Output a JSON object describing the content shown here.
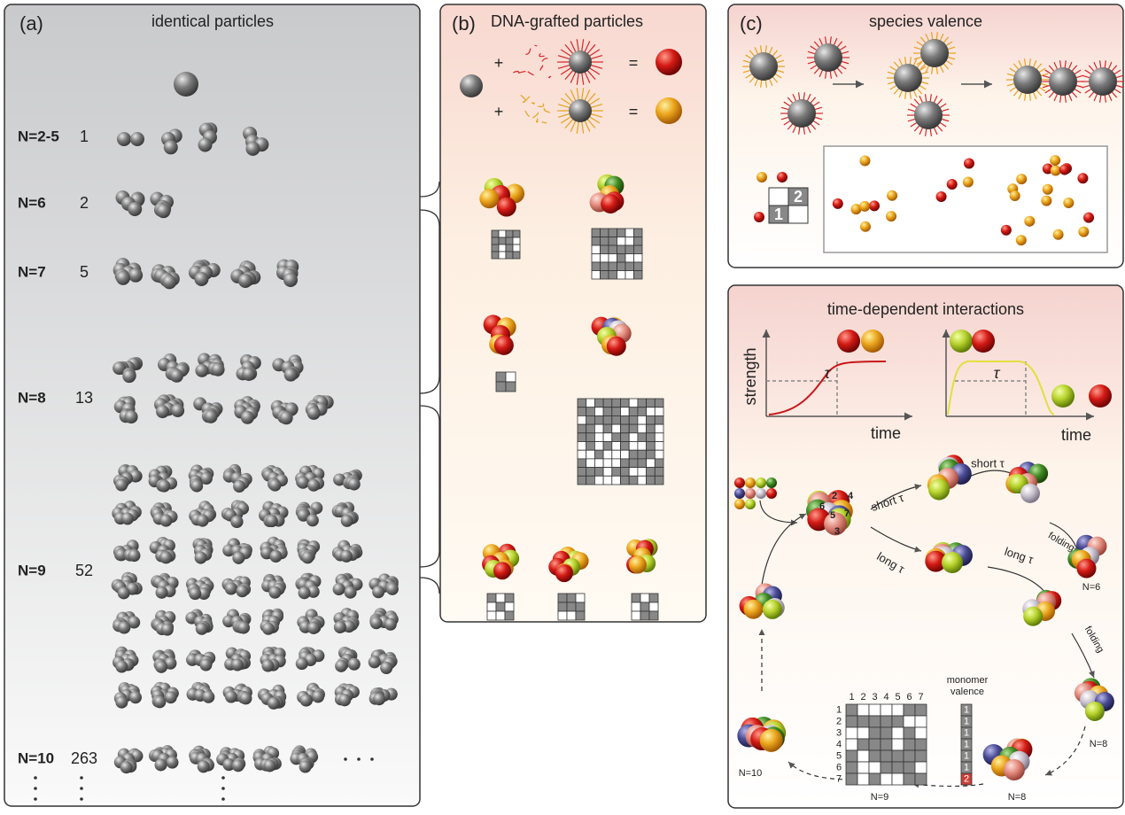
{
  "panel_a": {
    "label": "(a)",
    "title": "identical particles",
    "rows": [
      {
        "n": "N=2-5",
        "count": 1
      },
      {
        "n": "N=6",
        "count": 2
      },
      {
        "n": "N=7",
        "count": 5
      },
      {
        "n": "N=8",
        "count": 13
      },
      {
        "n": "N=9",
        "count": 52
      },
      {
        "n": "N=10",
        "count": 263
      }
    ]
  },
  "panel_b": {
    "label": "(b)",
    "title": "DNA-grafted particles",
    "symbols": [
      "+",
      "=",
      "+",
      "="
    ]
  },
  "panel_c": {
    "label": "(c)",
    "title": "species valence",
    "matrix_labels": [
      2,
      1
    ]
  },
  "panel_d": {
    "title": "time-dependent interactions",
    "y_axis": "strength",
    "x_axis": [
      "time",
      "time"
    ],
    "tau": [
      "τ",
      "τ"
    ],
    "paths": [
      "short τ",
      "long τ",
      "short τ",
      "long τ"
    ],
    "folding": [
      "folding",
      "folding"
    ],
    "clusters": [
      "N=6",
      "N=8",
      "N=8",
      "N=9",
      "N=10"
    ],
    "sphere_numbers": [
      2,
      4,
      6,
      5,
      7,
      3
    ],
    "valence_title": [
      "monomer",
      "valence"
    ],
    "matrix_columns": [
      1,
      2,
      3,
      4,
      5,
      6,
      7
    ],
    "matrix_rows": [
      1,
      2,
      3,
      4,
      5,
      6,
      7
    ],
    "valence": [
      1,
      1,
      1,
      1,
      1,
      1,
      2
    ]
  }
}
